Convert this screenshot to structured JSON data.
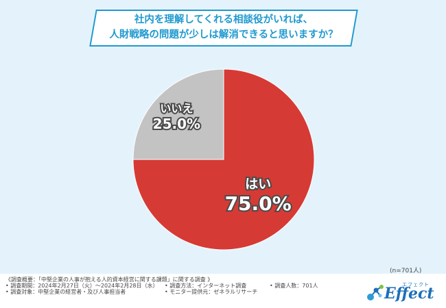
{
  "question": {
    "line1": "社内を理解してくれる相談役がいれば、",
    "line2": "人財戦略の問題が少しは解消できると思いますか？"
  },
  "chart_data": {
    "type": "pie",
    "slices": [
      {
        "label": "はい",
        "value": 75.0,
        "display": "75.0%",
        "color": "#d63a35"
      },
      {
        "label": "いいえ",
        "value": 25.0,
        "display": "25.0%",
        "color": "#c3c3c3"
      }
    ],
    "start": "12 o'clock",
    "direction": "clockwise"
  },
  "sample_size": "(n=701人)",
  "footer": {
    "title": "《調査概要：「中堅企業の人事が抱える人的資本経営に関する課題」に関する調査 》",
    "period": "• 調査期間：2024年2月27日（火）～2024年2月28日（水）",
    "method": "• 調査方法：インターネット調査",
    "count": "• 調査人数：701人",
    "target": "• 調査対象：中堅企業の経営者・及び人事担当者",
    "provider": "• モニター提供元：ゼネラルリサーチ"
  },
  "logo": {
    "word": "Effect",
    "kana": "エフェクト"
  }
}
